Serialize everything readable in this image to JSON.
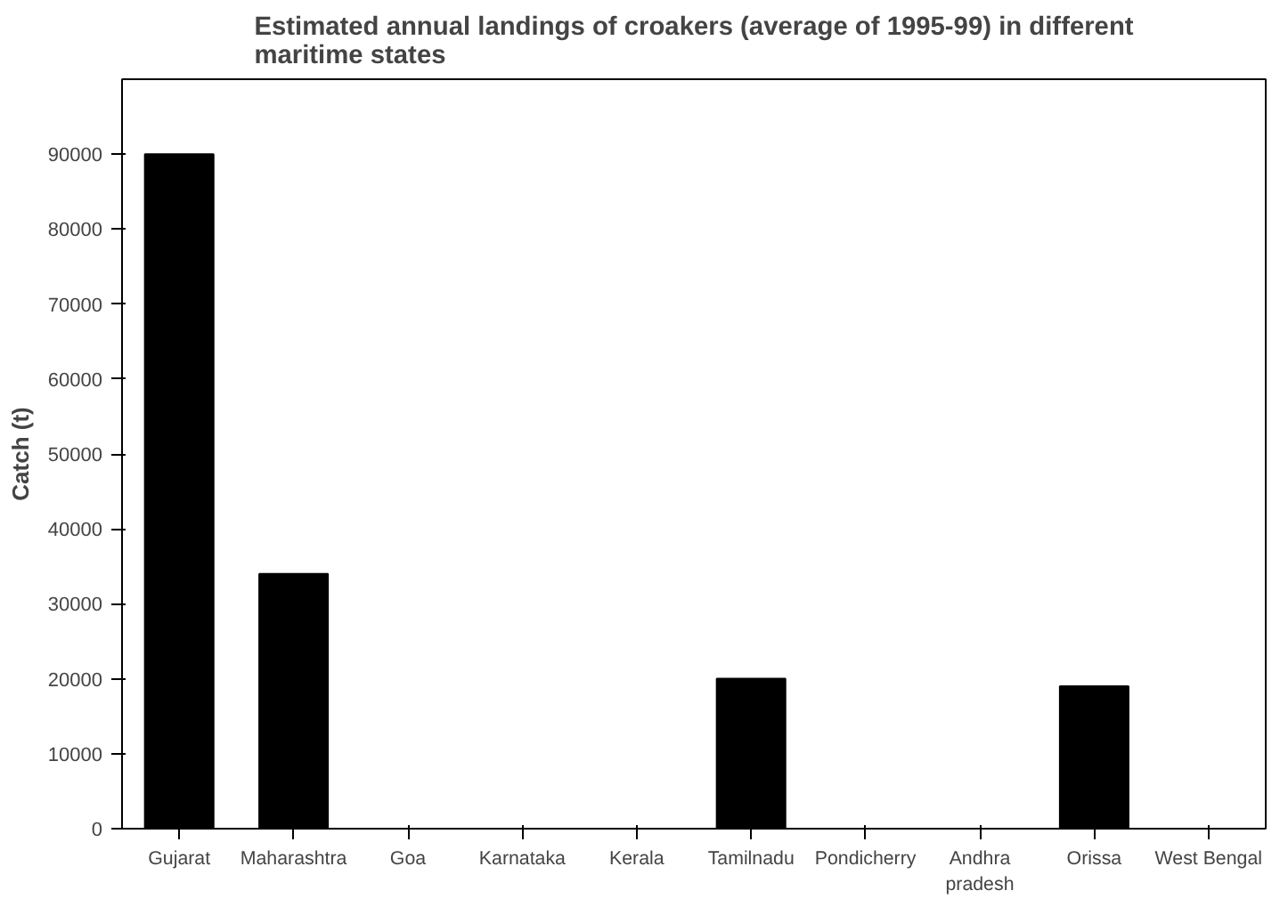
{
  "chart_data": {
    "type": "bar",
    "title": "Estimated annual landings of croakers (average of 1995-99) in different maritime states",
    "ylabel": "Catch (t)",
    "categories": [
      "Gujarat",
      "Maharashtra",
      "Goa",
      "Karnataka",
      "Kerala",
      "Tamilnadu",
      "Pondicherry",
      "Andhra pradesh",
      "Orissa",
      "West Bengal"
    ],
    "values": [
      90000,
      34000,
      null,
      null,
      null,
      20000,
      null,
      null,
      19000,
      null
    ],
    "color": "#000000",
    "ylim": [
      0,
      100000
    ],
    "yticks": [
      0,
      10000,
      20000,
      30000,
      40000,
      50000,
      60000,
      70000,
      80000,
      90000
    ],
    "grid": false
  }
}
